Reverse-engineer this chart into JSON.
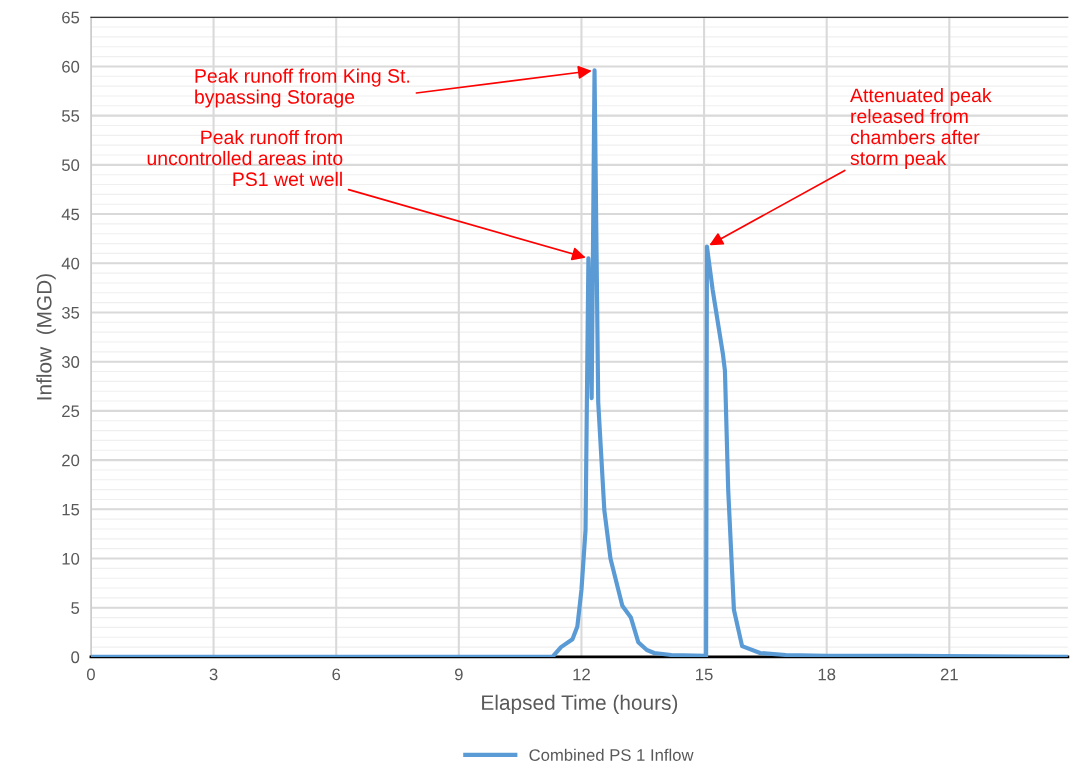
{
  "chart_data": {
    "type": "line",
    "xlabel": "Elapsed Time (hours)",
    "ylabel": "Inflow  (MGD)",
    "xlim": [
      0,
      23.9
    ],
    "xticks": [
      0,
      3,
      6,
      9,
      12,
      15,
      18,
      21
    ],
    "ylim": [
      0,
      65
    ],
    "yticks": [
      0,
      5,
      10,
      15,
      20,
      25,
      30,
      35,
      40,
      45,
      50,
      55,
      60,
      65
    ],
    "grid": true,
    "legend": "bottom",
    "marker": "none",
    "line_style": "solid",
    "series": [
      {
        "name": "Combined PS 1 Inflow",
        "color": "#5b9bd5",
        "x": [
          0,
          11.29,
          11.5,
          11.78,
          11.9,
          12.0,
          12.1,
          12.17,
          12.25,
          12.32,
          12.41,
          12.56,
          12.71,
          13.0,
          13.21,
          13.39,
          13.6,
          13.78,
          14.2,
          15.05,
          15.07,
          15.21,
          15.46,
          15.51,
          15.59,
          15.73,
          15.93,
          16.37,
          17.0,
          18.0,
          20.0,
          23.9
        ],
        "values": [
          0,
          0,
          1.0,
          1.8,
          3.1,
          6.8,
          12.9,
          40.5,
          26.3,
          59.6,
          25.9,
          14.9,
          10.0,
          5.2,
          4.0,
          1.5,
          0.7,
          0.4,
          0.2,
          0.1,
          41.7,
          37.3,
          30.8,
          29.1,
          17.0,
          4.8,
          1.1,
          0.4,
          0.2,
          0.1,
          0.1,
          0
        ]
      }
    ],
    "annotations": [
      {
        "text": "Peak runoff from King St.\nbypassing Storage",
        "x": 12.32,
        "y": 59.6
      },
      {
        "text": "Peak runoff from\nuncontrolled areas into\nPS1 wet well",
        "x": 12.17,
        "y": 40.5
      },
      {
        "text": "Attenuated peak\nreleased from\nchambers after\nstorm peak",
        "x": 15.07,
        "y": 41.7
      }
    ]
  }
}
